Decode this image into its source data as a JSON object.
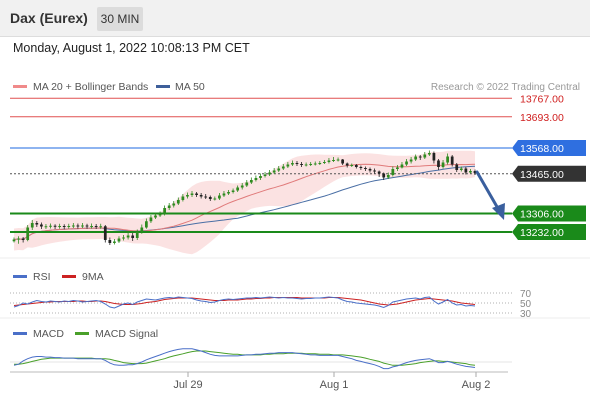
{
  "header": {
    "title": "Dax (Eurex)",
    "timeframe": "30 MIN",
    "datetime": "Monday, August 1, 2022 10:08:13 PM CET"
  },
  "legend": {
    "ma20_bb": "MA 20 + Bollinger Bands",
    "ma50": "MA 50",
    "copyright": "Research © 2022 Trading Central",
    "rsi": "RSI",
    "rsi_ma": "9MA",
    "macd": "MACD",
    "macd_signal": "MACD Signal"
  },
  "colors": {
    "candle_up": "#2e8b1f",
    "candle_down": "#222222",
    "bollinger": "#f7caca",
    "ma20": "#e07a7a",
    "ma50": "#4a6fa5",
    "resistance": "#e05050",
    "pivot": "#4a86e8",
    "support": "#1a8a1a",
    "arrow": "#3a5f9e",
    "rsi": "#4a6fc8",
    "rsi_ma": "#cc2222",
    "macd": "#4a6fc8",
    "macd_signal": "#4aa02a"
  },
  "chart_data": {
    "type": "candlestick",
    "y_range": [
      13160,
      13800
    ],
    "x_labels": [
      "Jul 29",
      "Aug 1",
      "Aug 2"
    ],
    "levels": [
      {
        "label": "13767.00",
        "value": 13767,
        "kind": "resistance"
      },
      {
        "label": "13693.00",
        "value": 13693,
        "kind": "resistance"
      },
      {
        "label": "13568.00",
        "value": 13568,
        "kind": "pivot"
      },
      {
        "label": "13465.00",
        "value": 13465,
        "kind": "current"
      },
      {
        "label": "13306.00",
        "value": 13306,
        "kind": "support"
      },
      {
        "label": "13232.00",
        "value": 13232,
        "kind": "support"
      }
    ],
    "candles": [
      [
        13195,
        13202,
        13190,
        13210
      ],
      [
        13202,
        13206,
        13185,
        13215
      ],
      [
        13206,
        13200,
        13190,
        13212
      ],
      [
        13200,
        13250,
        13195,
        13260
      ],
      [
        13250,
        13268,
        13240,
        13280
      ],
      [
        13268,
        13262,
        13252,
        13276
      ],
      [
        13262,
        13254,
        13244,
        13270
      ],
      [
        13254,
        13255,
        13244,
        13264
      ],
      [
        13255,
        13257,
        13246,
        13266
      ],
      [
        13257,
        13253,
        13244,
        13263
      ],
      [
        13253,
        13256,
        13245,
        13265
      ],
      [
        13256,
        13252,
        13243,
        13263
      ],
      [
        13252,
        13256,
        13245,
        13265
      ],
      [
        13256,
        13258,
        13248,
        13268
      ],
      [
        13258,
        13255,
        13245,
        13266
      ],
      [
        13255,
        13258,
        13248,
        13268
      ],
      [
        13258,
        13254,
        13245,
        13265
      ],
      [
        13254,
        13256,
        13246,
        13266
      ],
      [
        13256,
        13253,
        13244,
        13264
      ],
      [
        13253,
        13255,
        13245,
        13265
      ],
      [
        13255,
        13200,
        13190,
        13260
      ],
      [
        13200,
        13188,
        13180,
        13210
      ],
      [
        13188,
        13194,
        13182,
        13204
      ],
      [
        13194,
        13206,
        13188,
        13215
      ],
      [
        13206,
        13210,
        13198,
        13220
      ],
      [
        13210,
        13218,
        13202,
        13230
      ],
      [
        13218,
        13208,
        13196,
        13228
      ],
      [
        13208,
        13232,
        13200,
        13242
      ],
      [
        13232,
        13250,
        13225,
        13262
      ],
      [
        13250,
        13275,
        13245,
        13286
      ],
      [
        13275,
        13290,
        13268,
        13300
      ],
      [
        13290,
        13298,
        13284,
        13308
      ],
      [
        13298,
        13304,
        13292,
        13314
      ],
      [
        13304,
        13328,
        13298,
        13338
      ],
      [
        13328,
        13338,
        13320,
        13348
      ],
      [
        13338,
        13346,
        13330,
        13356
      ],
      [
        13346,
        13360,
        13340,
        13370
      ],
      [
        13360,
        13374,
        13354,
        13384
      ],
      [
        13374,
        13380,
        13366,
        13390
      ],
      [
        13380,
        13386,
        13372,
        13396
      ],
      [
        13386,
        13380,
        13372,
        13392
      ],
      [
        13380,
        13374,
        13366,
        13388
      ],
      [
        13374,
        13372,
        13364,
        13384
      ],
      [
        13372,
        13364,
        13356,
        13378
      ],
      [
        13364,
        13366,
        13358,
        13374
      ],
      [
        13366,
        13378,
        13360,
        13388
      ],
      [
        13378,
        13386,
        13372,
        13396
      ],
      [
        13386,
        13392,
        13380,
        13400
      ],
      [
        13392,
        13398,
        13386,
        13406
      ],
      [
        13398,
        13410,
        13392,
        13418
      ],
      [
        13410,
        13418,
        13402,
        13428
      ],
      [
        13418,
        13430,
        13412,
        13440
      ],
      [
        13430,
        13440,
        13424,
        13450
      ],
      [
        13440,
        13448,
        13434,
        13458
      ],
      [
        13448,
        13456,
        13440,
        13466
      ],
      [
        13456,
        13462,
        13450,
        13472
      ],
      [
        13462,
        13470,
        13456,
        13480
      ],
      [
        13470,
        13478,
        13464,
        13488
      ],
      [
        13478,
        13486,
        13472,
        13496
      ],
      [
        13486,
        13494,
        13480,
        13504
      ],
      [
        13494,
        13502,
        13488,
        13512
      ],
      [
        13502,
        13508,
        13496,
        13518
      ],
      [
        13508,
        13504,
        13496,
        13516
      ],
      [
        13504,
        13500,
        13492,
        13512
      ],
      [
        13500,
        13502,
        13494,
        13510
      ],
      [
        13502,
        13504,
        13496,
        13512
      ],
      [
        13504,
        13506,
        13498,
        13514
      ],
      [
        13506,
        13508,
        13500,
        13516
      ],
      [
        13508,
        13512,
        13504,
        13520
      ],
      [
        13512,
        13518,
        13506,
        13528
      ],
      [
        13518,
        13520,
        13512,
        13532
      ],
      [
        13520,
        13522,
        13514,
        13530
      ],
      [
        13522,
        13506,
        13500,
        13524
      ],
      [
        13506,
        13498,
        13490,
        13510
      ],
      [
        13498,
        13500,
        13492,
        13506
      ],
      [
        13500,
        13492,
        13486,
        13504
      ],
      [
        13492,
        13488,
        13480,
        13498
      ],
      [
        13488,
        13484,
        13476,
        13494
      ],
      [
        13484,
        13478,
        13470,
        13490
      ],
      [
        13478,
        13474,
        13466,
        13486
      ],
      [
        13474,
        13466,
        13452,
        13478
      ],
      [
        13466,
        13450,
        13440,
        13470
      ],
      [
        13450,
        13460,
        13444,
        13470
      ],
      [
        13460,
        13484,
        13454,
        13494
      ],
      [
        13484,
        13490,
        13476,
        13500
      ],
      [
        13490,
        13502,
        13486,
        13512
      ],
      [
        13502,
        13514,
        13496,
        13524
      ],
      [
        13514,
        13522,
        13506,
        13532
      ],
      [
        13522,
        13534,
        13516,
        13542
      ],
      [
        13534,
        13530,
        13520,
        13540
      ],
      [
        13530,
        13542,
        13524,
        13552
      ],
      [
        13542,
        13548,
        13536,
        13558
      ],
      [
        13548,
        13518,
        13506,
        13554
      ],
      [
        13518,
        13492,
        13480,
        13524
      ],
      [
        13492,
        13510,
        13486,
        13520
      ],
      [
        13510,
        13534,
        13502,
        13546
      ],
      [
        13534,
        13502,
        13494,
        13540
      ],
      [
        13502,
        13480,
        13472,
        13508
      ],
      [
        13480,
        13486,
        13474,
        13494
      ],
      [
        13486,
        13470,
        13462,
        13492
      ],
      [
        13470,
        13476,
        13466,
        13484
      ],
      [
        13476,
        13468,
        13460,
        13482
      ]
    ],
    "rsi_levels": [
      "70",
      "50",
      "30"
    ],
    "rsi_values": [
      42,
      45,
      50,
      48,
      52,
      55,
      53,
      52,
      54,
      53,
      52,
      54,
      53,
      55,
      54,
      52,
      53,
      54,
      55,
      53,
      48,
      42,
      40,
      44,
      48,
      50,
      47,
      52,
      55,
      58,
      57,
      56,
      58,
      60,
      61,
      60,
      62,
      61,
      60,
      59,
      56,
      54,
      53,
      51,
      52,
      55,
      57,
      58,
      57,
      58,
      59,
      60,
      60,
      61,
      60,
      61,
      62,
      61,
      60,
      61,
      60,
      60,
      59,
      58,
      59,
      59,
      60,
      60,
      61,
      62,
      61,
      60,
      56,
      53,
      52,
      50,
      49,
      48,
      47,
      46,
      44,
      41,
      45,
      52,
      54,
      56,
      58,
      59,
      60,
      58,
      61,
      62,
      54,
      48,
      52,
      57,
      50,
      46,
      47,
      44,
      45,
      44
    ],
    "rsi_ma_values": [
      45,
      46,
      47,
      48,
      49,
      50,
      51,
      52,
      52,
      53,
      53,
      53,
      53,
      53,
      54,
      54,
      53,
      53,
      54,
      54,
      53,
      51,
      49,
      48,
      47,
      47,
      47,
      48,
      49,
      51,
      52,
      53,
      55,
      57,
      58,
      59,
      60,
      60,
      60,
      60,
      59,
      58,
      57,
      56,
      55,
      55,
      55,
      56,
      56,
      56,
      57,
      58,
      58,
      59,
      59,
      60,
      60,
      61,
      61,
      61,
      61,
      61,
      61,
      60,
      60,
      60,
      60,
      60,
      60,
      61,
      61,
      61,
      60,
      59,
      58,
      57,
      56,
      54,
      52,
      50,
      48,
      47,
      46,
      47,
      48,
      50,
      52,
      54,
      56,
      57,
      58,
      59,
      58,
      57,
      56,
      55,
      54,
      52,
      50,
      49,
      48,
      47
    ],
    "macd_values": [
      -6,
      -4,
      2,
      6,
      9,
      10,
      10,
      9,
      9,
      8,
      8,
      7,
      7,
      7,
      6,
      6,
      6,
      6,
      6,
      6,
      3,
      -2,
      -5,
      -6,
      -6,
      -5,
      -5,
      -3,
      0,
      4,
      7,
      10,
      13,
      16,
      19,
      21,
      23,
      24,
      24,
      24,
      22,
      20,
      17,
      14,
      12,
      11,
      11,
      11,
      11,
      11,
      12,
      13,
      13,
      14,
      14,
      15,
      16,
      16,
      17,
      17,
      17,
      17,
      16,
      15,
      14,
      13,
      13,
      12,
      12,
      12,
      12,
      12,
      10,
      8,
      6,
      3,
      1,
      -1,
      -3,
      -5,
      -8,
      -12,
      -12,
      -9,
      -7,
      -4,
      -1,
      1,
      3,
      4,
      5,
      6,
      3,
      -1,
      -1,
      1,
      -1,
      -4,
      -6,
      -8,
      -9,
      -10
    ],
    "macd_signal_values": [
      -4,
      -4,
      -3,
      -1,
      1,
      3,
      5,
      6,
      7,
      7,
      7,
      7,
      7,
      7,
      7,
      7,
      7,
      7,
      6,
      6,
      6,
      5,
      3,
      1,
      -1,
      -2,
      -3,
      -3,
      -3,
      -2,
      0,
      2,
      4,
      6,
      9,
      11,
      13,
      15,
      17,
      19,
      20,
      20,
      20,
      19,
      18,
      17,
      16,
      15,
      14,
      14,
      13,
      13,
      13,
      13,
      13,
      14,
      14,
      15,
      15,
      15,
      16,
      16,
      16,
      16,
      15,
      15,
      15,
      14,
      14,
      14,
      13,
      13,
      13,
      12,
      11,
      10,
      9,
      7,
      5,
      3,
      1,
      -2,
      -4,
      -6,
      -6,
      -6,
      -5,
      -4,
      -3,
      -1,
      0,
      1,
      2,
      2,
      1,
      1,
      0,
      -1,
      -2,
      -3,
      -5,
      -6
    ]
  }
}
